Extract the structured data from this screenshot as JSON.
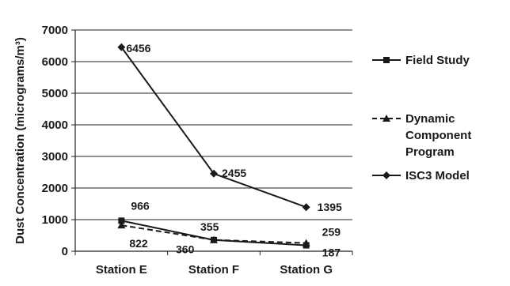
{
  "chart_data": {
    "type": "line",
    "title": "",
    "xlabel": "",
    "ylabel": "Dust Concentration (micrograms/m³)",
    "categories": [
      "Station E",
      "Station F",
      "Station G"
    ],
    "ylim": [
      0,
      7000
    ],
    "yticks": [
      0,
      1000,
      2000,
      3000,
      4000,
      5000,
      6000,
      7000
    ],
    "grid": true,
    "legend_position": "right",
    "series": [
      {
        "name": "Field Study",
        "values": [
          966,
          355,
          187
        ],
        "marker": "square",
        "dash": "solid",
        "color": "#1a1a1a"
      },
      {
        "name": "Dynamic Component Program",
        "values": [
          822,
          360,
          259
        ],
        "marker": "triangle",
        "dash": "dashed",
        "color": "#1a1a1a"
      },
      {
        "name": "ISC3 Model",
        "values": [
          6456,
          2455,
          1395
        ],
        "marker": "diamond",
        "dash": "solid",
        "color": "#1a1a1a"
      }
    ],
    "data_labels": [
      {
        "text": "6456",
        "series": 2,
        "index": 0
      },
      {
        "text": "2455",
        "series": 2,
        "index": 1
      },
      {
        "text": "1395",
        "series": 2,
        "index": 2
      },
      {
        "text": "966",
        "series": 0,
        "index": 0
      },
      {
        "text": "822",
        "series": 1,
        "index": 0
      },
      {
        "text": "355",
        "series": 0,
        "index": 1
      },
      {
        "text": "360",
        "series": 1,
        "index": 1
      },
      {
        "text": "259",
        "series": 1,
        "index": 2
      },
      {
        "text": "187",
        "series": 0,
        "index": 2
      }
    ],
    "legend": {
      "items": [
        {
          "lines": [
            "Field Study"
          ],
          "marker": "square",
          "dash": "solid"
        },
        {
          "lines": [
            "Dynamic",
            "Component",
            "Program"
          ],
          "marker": "triangle",
          "dash": "dashed"
        },
        {
          "lines": [
            "ISC3 Model"
          ],
          "marker": "diamond",
          "dash": "solid"
        }
      ]
    }
  }
}
